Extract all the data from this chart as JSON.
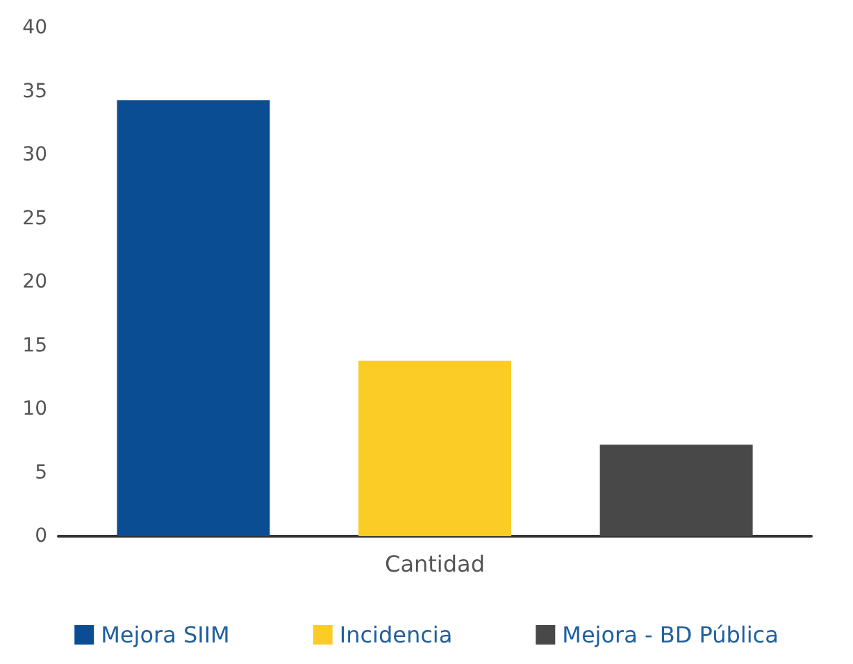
{
  "chart_data": {
    "type": "bar",
    "categories": [
      "Cantidad"
    ],
    "series": [
      {
        "name": "Mejora SIIM",
        "color": "#0b4d92",
        "values": [
          34.3
        ]
      },
      {
        "name": "Incidencia",
        "color": "#fbcb26",
        "values": [
          13.8
        ]
      },
      {
        "name": "Mejora - BD Pública",
        "color": "#474847",
        "values": [
          7.2
        ]
      }
    ],
    "ylim": [
      0,
      40
    ],
    "yticks": [
      0,
      5,
      10,
      15,
      20,
      25,
      30,
      35,
      40
    ],
    "grid": false,
    "legend": "bottom"
  }
}
